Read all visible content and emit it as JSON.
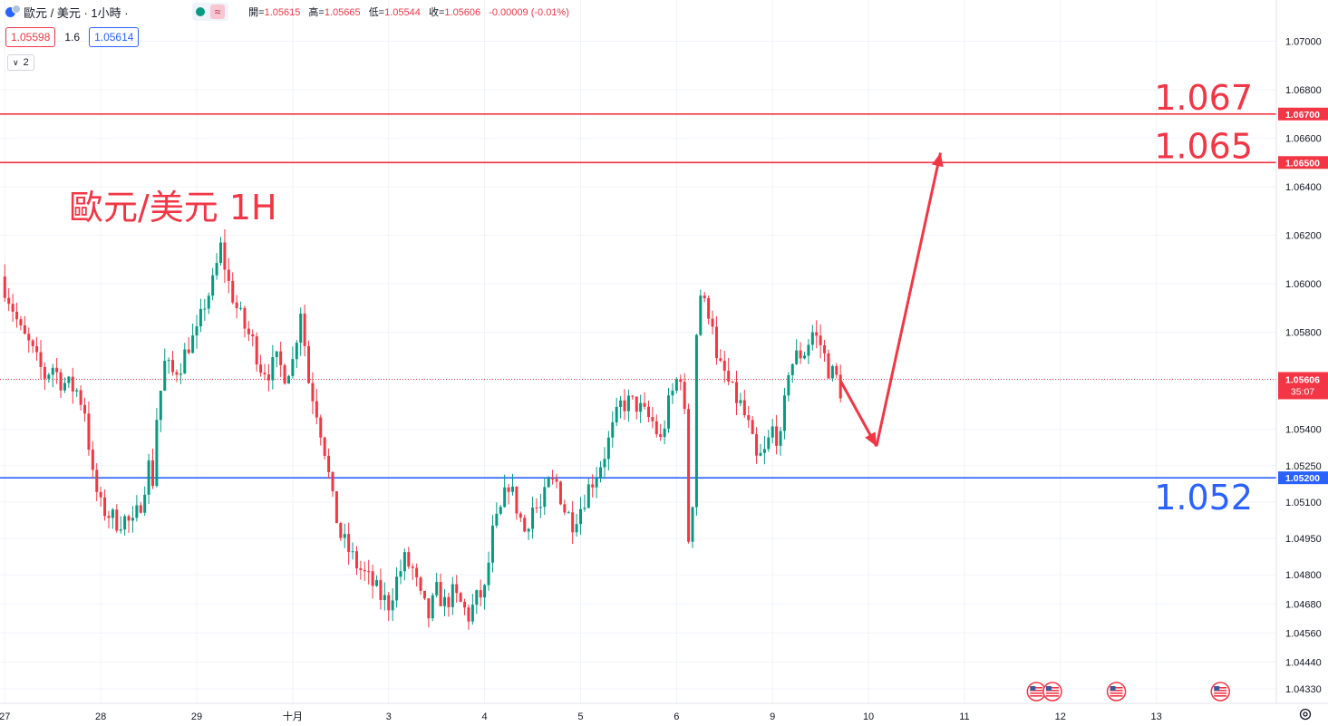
{
  "header": {
    "title": "歐元 / 美元 · 1小時 ·",
    "status_badge": "≈",
    "ohlc": [
      {
        "label": "開=",
        "value": "1.05615"
      },
      {
        "label": "高=",
        "value": "1.05665"
      },
      {
        "label": "低=",
        "value": "1.05544"
      },
      {
        "label": "收=",
        "value": "1.05606"
      },
      {
        "label": "",
        "value": "-0.00009 (-0.01%)"
      }
    ],
    "bid": "1.05598",
    "spread": "1.6",
    "ask": "1.05614",
    "indicators_count": "2",
    "colors": {
      "down": "#f23645",
      "up": "#089981",
      "blue": "#2962ff"
    }
  },
  "icons": {
    "symbol": "currency-pair-icon",
    "settings": "gear-icon",
    "event": "us-flag-icon",
    "collapse": "chevron-down-icon"
  },
  "chart_data": {
    "type": "candlestick",
    "title": "歐元/美元 1H",
    "xlabel": "",
    "ylabel": "",
    "ylim": [
      1.0427,
      1.0717
    ],
    "y_ticks": [
      "1.07000",
      "1.06800",
      "1.06600",
      "1.06400",
      "1.06200",
      "1.06000",
      "1.05800",
      "1.05400",
      "1.05250",
      "1.05100",
      "1.04950",
      "1.04800",
      "1.04680",
      "1.04560",
      "1.04440",
      "1.04330"
    ],
    "x_ticks": [
      {
        "label": "27",
        "x": 0
      },
      {
        "label": "28",
        "x": 24
      },
      {
        "label": "29",
        "x": 48
      },
      {
        "label": "十月",
        "x": 72
      },
      {
        "label": "3",
        "x": 96
      },
      {
        "label": "4",
        "x": 120
      },
      {
        "label": "5",
        "x": 144
      },
      {
        "label": "6",
        "x": 168
      },
      {
        "label": "9",
        "x": 192
      },
      {
        "label": "10",
        "x": 216
      },
      {
        "label": "11",
        "x": 240
      },
      {
        "label": "12",
        "x": 264
      },
      {
        "label": "13",
        "x": 288
      }
    ],
    "x_min": -1.2,
    "x_max": 318,
    "path": [
      [
        -1,
        1.0603
      ],
      [
        2,
        1.059
      ],
      [
        4,
        1.058
      ],
      [
        6,
        1.0575
      ],
      [
        8,
        1.0568
      ],
      [
        10,
        1.0562
      ],
      [
        12,
        1.0566
      ],
      [
        14,
        1.056
      ],
      [
        16,
        1.0558
      ],
      [
        18,
        1.0556
      ],
      [
        20,
        1.0548
      ],
      [
        22,
        1.052
      ],
      [
        24,
        1.0508
      ],
      [
        26,
        1.0505
      ],
      [
        28,
        1.0502
      ],
      [
        30,
        1.0503
      ],
      [
        32,
        1.05
      ],
      [
        34,
        1.051
      ],
      [
        36,
        1.0525
      ],
      [
        37,
        1.0519
      ],
      [
        38,
        1.0545
      ],
      [
        40,
        1.0567
      ],
      [
        42,
        1.0563
      ],
      [
        44,
        1.0567
      ],
      [
        46,
        1.0575
      ],
      [
        48,
        1.0579
      ],
      [
        50,
        1.0592
      ],
      [
        52,
        1.06
      ],
      [
        54,
        1.0615
      ],
      [
        56,
        1.06
      ],
      [
        58,
        1.059
      ],
      [
        60,
        1.0582
      ],
      [
        62,
        1.0576
      ],
      [
        64,
        1.0566
      ],
      [
        66,
        1.0564
      ],
      [
        68,
        1.0568
      ],
      [
        70,
        1.0563
      ],
      [
        72,
        1.0568
      ],
      [
        74,
        1.059
      ],
      [
        76,
        1.056
      ],
      [
        78,
        1.0548
      ],
      [
        80,
        1.0532
      ],
      [
        82,
        1.051
      ],
      [
        84,
        1.0496
      ],
      [
        86,
        1.049
      ],
      [
        88,
        1.0484
      ],
      [
        90,
        1.048
      ],
      [
        92,
        1.0476
      ],
      [
        94,
        1.0471
      ],
      [
        96,
        1.0468
      ],
      [
        98,
        1.0478
      ],
      [
        100,
        1.0486
      ],
      [
        102,
        1.0482
      ],
      [
        104,
        1.047
      ],
      [
        106,
        1.0463
      ],
      [
        108,
        1.0473
      ],
      [
        110,
        1.0468
      ],
      [
        112,
        1.0472
      ],
      [
        114,
        1.0468
      ],
      [
        116,
        1.0463
      ],
      [
        118,
        1.047
      ],
      [
        120,
        1.0473
      ],
      [
        122,
        1.0497
      ],
      [
        124,
        1.0506
      ],
      [
        126,
        1.0518
      ],
      [
        128,
        1.0508
      ],
      [
        130,
        1.0498
      ],
      [
        132,
        1.0508
      ],
      [
        134,
        1.0507
      ],
      [
        136,
        1.0517
      ],
      [
        138,
        1.0518
      ],
      [
        140,
        1.0507
      ],
      [
        142,
        1.0502
      ],
      [
        144,
        1.0508
      ],
      [
        146,
        1.0516
      ],
      [
        148,
        1.0522
      ],
      [
        150,
        1.053
      ],
      [
        152,
        1.054
      ],
      [
        154,
        1.055
      ],
      [
        156,
        1.0551
      ],
      [
        158,
        1.055
      ],
      [
        160,
        1.0546
      ],
      [
        162,
        1.0543
      ],
      [
        164,
        1.0535
      ],
      [
        166,
        1.055
      ],
      [
        168,
        1.056
      ],
      [
        169,
        1.0563
      ],
      [
        170,
        1.0545
      ],
      [
        171,
        1.0495
      ],
      [
        172,
        1.0511
      ],
      [
        173,
        1.058
      ],
      [
        174,
        1.0596
      ],
      [
        175,
        1.0591
      ],
      [
        176,
        1.0589
      ],
      [
        177,
        1.0585
      ],
      [
        178,
        1.0567
      ],
      [
        180,
        1.0563
      ],
      [
        182,
        1.0555
      ],
      [
        184,
        1.055
      ],
      [
        186,
        1.0541
      ],
      [
        188,
        1.0527
      ],
      [
        190,
        1.053
      ],
      [
        192,
        1.054
      ],
      [
        194,
        1.0535
      ],
      [
        196,
        1.0565
      ],
      [
        198,
        1.057
      ],
      [
        200,
        1.0572
      ],
      [
        202,
        1.058
      ],
      [
        204,
        1.0575
      ],
      [
        206,
        1.0565
      ],
      [
        208,
        1.0561
      ],
      [
        209,
        1.0556
      ]
    ],
    "series": [
      {
        "name": "1.067",
        "type": "hline",
        "value": 1.067,
        "color": "#f23645",
        "label": "1.06700"
      },
      {
        "name": "1.065",
        "type": "hline",
        "value": 1.065,
        "color": "#f23645",
        "label": "1.06500"
      },
      {
        "name": "1.052",
        "type": "hline",
        "value": 1.052,
        "color": "#2962ff",
        "label": "1.05200"
      }
    ],
    "last_price": {
      "value": 1.05606,
      "label": "1.05606",
      "countdown": "35:07"
    },
    "projection": [
      [
        209,
        1.056
      ],
      [
        218,
        1.0533
      ],
      [
        234,
        1.0654
      ]
    ],
    "event_markers": [
      258,
      262,
      278,
      304
    ],
    "annotations": [
      {
        "text": "歐元/美元 1H",
        "color": "#f23645"
      }
    ]
  }
}
